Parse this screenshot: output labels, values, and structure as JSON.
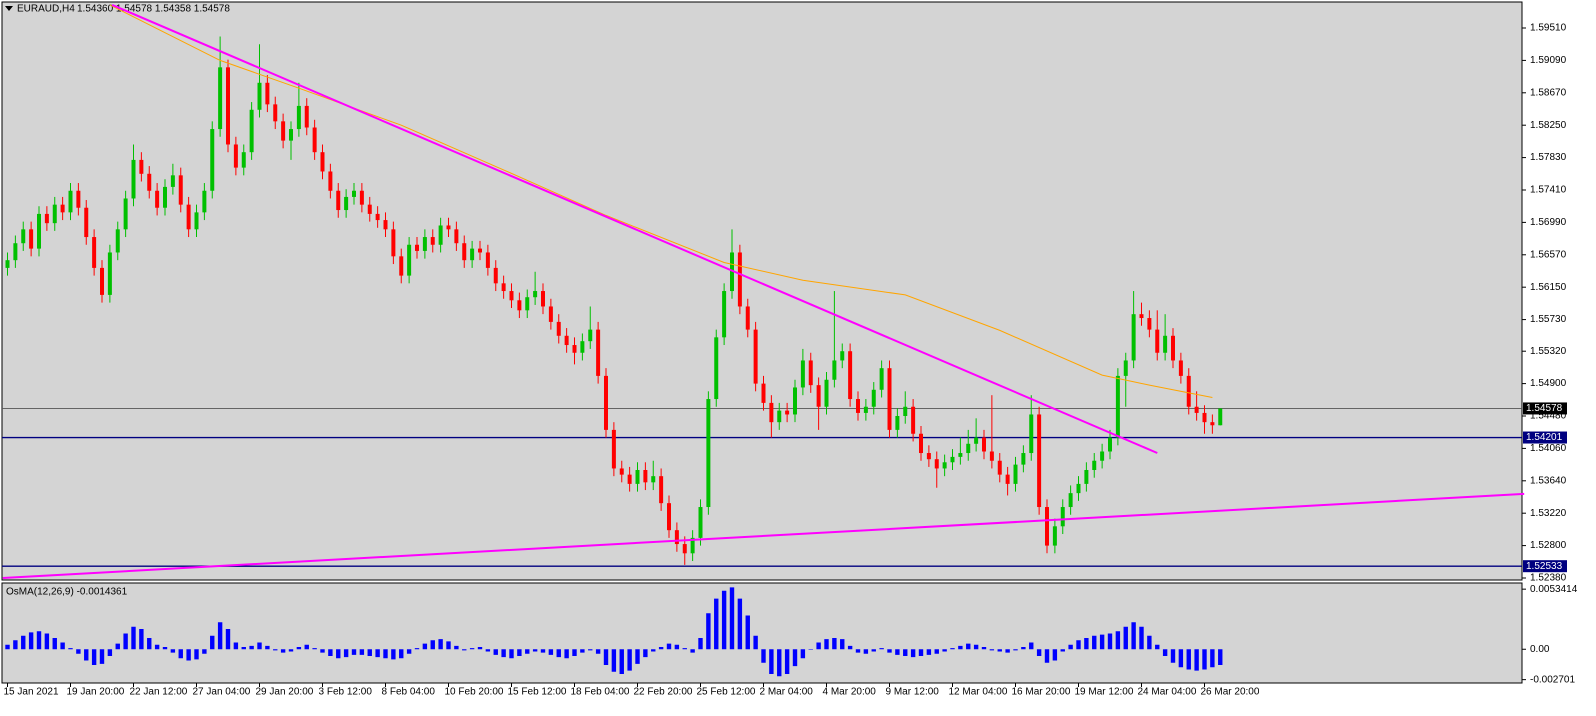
{
  "chart_data": {
    "type": "candlestick",
    "title": "EURAUD,H4",
    "ohlc_label": "1.54360 1.54578 1.54358 1.54578",
    "categories": [
      "15 Jan 2021",
      null,
      null,
      null,
      null,
      null,
      null,
      null,
      "19 Jan 20:00",
      null,
      null,
      null,
      null,
      null,
      null,
      null,
      "22 Jan 12:00",
      null,
      null,
      null,
      null,
      null,
      null,
      null,
      "27 Jan 04:00",
      null,
      null,
      null,
      null,
      null,
      null,
      null,
      "29 Jan 20:00",
      null,
      null,
      null,
      null,
      null,
      null,
      null,
      "3 Feb 12:00",
      null,
      null,
      null,
      null,
      null,
      null,
      null,
      "8 Feb 04:00",
      null,
      null,
      null,
      null,
      null,
      null,
      null,
      "10 Feb 20:00",
      null,
      null,
      null,
      null,
      null,
      null,
      null,
      "15 Feb 12:00",
      null,
      null,
      null,
      null,
      null,
      null,
      null,
      "18 Feb 04:00",
      null,
      null,
      null,
      null,
      null,
      null,
      null,
      "22 Feb 20:00",
      null,
      null,
      null,
      null,
      null,
      null,
      null,
      "25 Feb 12:00",
      null,
      null,
      null,
      null,
      null,
      null,
      null,
      "2 Mar 04:00",
      null,
      null,
      null,
      null,
      null,
      null,
      null,
      "4 Mar 20:00",
      null,
      null,
      null,
      null,
      null,
      null,
      null,
      "9 Mar 12:00",
      null,
      null,
      null,
      null,
      null,
      null,
      null,
      "12 Mar 04:00",
      null,
      null,
      null,
      null,
      null,
      null,
      null,
      "16 Mar 20:00",
      null,
      null,
      null,
      null,
      null,
      null,
      null,
      "19 Mar 12:00",
      null,
      null,
      null,
      null,
      null,
      null,
      null,
      "24 Mar 04:00",
      null,
      null,
      null,
      null,
      null,
      null,
      null,
      "26 Mar 20:00",
      null,
      null
    ],
    "candles": {
      "up_color": "#00c000",
      "down_color": "#ff0000",
      "open": [
        1.564,
        1.565,
        1.5672,
        1.569,
        1.5665,
        1.571,
        1.5698,
        1.5722,
        1.5712,
        1.574,
        1.5718,
        1.568,
        1.564,
        1.5605,
        1.566,
        1.569,
        1.573,
        1.578,
        1.5762,
        1.574,
        1.5718,
        1.5745,
        1.576,
        1.5722,
        1.569,
        1.5712,
        1.574,
        1.582,
        1.59,
        1.58,
        1.577,
        1.579,
        1.5845,
        1.588,
        1.5852,
        1.583,
        1.5805,
        1.582,
        1.585,
        1.5822,
        1.579,
        1.5765,
        1.574,
        1.5715,
        1.5732,
        1.574,
        1.5722,
        1.571,
        1.5702,
        1.569,
        1.5655,
        1.563,
        1.567,
        1.5662,
        1.568,
        1.567,
        1.5695,
        1.569,
        1.5672,
        1.565,
        1.5665,
        1.566,
        1.564,
        1.562,
        1.561,
        1.5598,
        1.5585,
        1.5602,
        1.561,
        1.559,
        1.557,
        1.5552,
        1.554,
        1.553,
        1.5545,
        1.556,
        1.55,
        1.543,
        1.538,
        1.5372,
        1.536,
        1.5378,
        1.5362,
        1.537,
        1.5335,
        1.53,
        1.5282,
        1.527,
        1.529,
        1.533,
        1.547,
        1.555,
        1.561,
        1.566,
        1.559,
        1.556,
        1.549,
        1.5465,
        1.544,
        1.5455,
        1.545,
        1.5485,
        1.552,
        1.5488,
        1.546,
        1.5495,
        1.552,
        1.5532,
        1.547,
        1.5452,
        1.546,
        1.5482,
        1.551,
        1.543,
        1.5448,
        1.546,
        1.5425,
        1.54,
        1.5392,
        1.538,
        1.5388,
        1.5395,
        1.54,
        1.5412,
        1.542,
        1.5402,
        1.539,
        1.5372,
        1.536,
        1.5385,
        1.54,
        1.545,
        1.533,
        1.528,
        1.5305,
        1.533,
        1.5348,
        1.536,
        1.5378,
        1.539,
        1.5402,
        1.542,
        1.55,
        1.552,
        1.558,
        1.5575,
        1.556,
        1.553,
        1.5552,
        1.552,
        1.55,
        1.546,
        1.5452,
        1.544,
        1.5436
      ],
      "high": [
        1.566,
        1.5682,
        1.57,
        1.57,
        1.572,
        1.572,
        1.5732,
        1.5732,
        1.575,
        1.575,
        1.5728,
        1.569,
        1.565,
        1.567,
        1.57,
        1.574,
        1.58,
        1.579,
        1.5772,
        1.575,
        1.5755,
        1.5775,
        1.577,
        1.5732,
        1.5722,
        1.575,
        1.583,
        1.594,
        1.591,
        1.581,
        1.58,
        1.5855,
        1.593,
        1.589,
        1.5862,
        1.584,
        1.583,
        1.588,
        1.586,
        1.5832,
        1.58,
        1.5775,
        1.575,
        1.5742,
        1.575,
        1.575,
        1.5732,
        1.572,
        1.5712,
        1.57,
        1.5665,
        1.568,
        1.568,
        1.569,
        1.569,
        1.5705,
        1.5705,
        1.57,
        1.5682,
        1.5675,
        1.5675,
        1.567,
        1.565,
        1.563,
        1.562,
        1.5608,
        1.5612,
        1.5635,
        1.562,
        1.56,
        1.558,
        1.5562,
        1.555,
        1.5555,
        1.559,
        1.557,
        1.551,
        1.544,
        1.539,
        1.5382,
        1.5388,
        1.5388,
        1.539,
        1.538,
        1.5345,
        1.531,
        1.5292,
        1.53,
        1.534,
        1.548,
        1.556,
        1.562,
        1.569,
        1.567,
        1.56,
        1.557,
        1.55,
        1.5475,
        1.5465,
        1.5465,
        1.5495,
        1.5535,
        1.553,
        1.5498,
        1.5505,
        1.561,
        1.5542,
        1.5542,
        1.548,
        1.547,
        1.5492,
        1.552,
        1.552,
        1.5458,
        1.548,
        1.547,
        1.5435,
        1.541,
        1.5402,
        1.5398,
        1.5405,
        1.542,
        1.543,
        1.5445,
        1.543,
        1.5475,
        1.54,
        1.5382,
        1.5395,
        1.541,
        1.5475,
        1.546,
        1.534,
        1.5315,
        1.534,
        1.5358,
        1.537,
        1.5388,
        1.54,
        1.5412,
        1.543,
        1.551,
        1.553,
        1.561,
        1.5595,
        1.5585,
        1.5585,
        1.558,
        1.5562,
        1.553,
        1.551,
        1.548,
        1.5462,
        1.545,
        1.54578
      ],
      "low": [
        1.563,
        1.564,
        1.5662,
        1.5655,
        1.5655,
        1.5688,
        1.5688,
        1.5702,
        1.5702,
        1.5708,
        1.567,
        1.563,
        1.5595,
        1.5595,
        1.565,
        1.568,
        1.572,
        1.5752,
        1.573,
        1.5708,
        1.5708,
        1.5735,
        1.5712,
        1.568,
        1.568,
        1.5702,
        1.573,
        1.581,
        1.579,
        1.576,
        1.576,
        1.578,
        1.5835,
        1.5842,
        1.582,
        1.5795,
        1.578,
        1.581,
        1.5812,
        1.578,
        1.5755,
        1.573,
        1.5705,
        1.5705,
        1.5722,
        1.5712,
        1.57,
        1.5692,
        1.568,
        1.5645,
        1.562,
        1.562,
        1.5652,
        1.5652,
        1.566,
        1.566,
        1.568,
        1.5662,
        1.564,
        1.564,
        1.565,
        1.563,
        1.561,
        1.56,
        1.5588,
        1.5575,
        1.5575,
        1.5592,
        1.558,
        1.556,
        1.5542,
        1.553,
        1.5515,
        1.552,
        1.5535,
        1.549,
        1.542,
        1.537,
        1.5362,
        1.535,
        1.535,
        1.5352,
        1.5352,
        1.5325,
        1.529,
        1.5272,
        1.5255,
        1.526,
        1.528,
        1.532,
        1.546,
        1.554,
        1.56,
        1.558,
        1.555,
        1.548,
        1.5455,
        1.542,
        1.543,
        1.544,
        1.544,
        1.5475,
        1.5478,
        1.543,
        1.545,
        1.5485,
        1.551,
        1.546,
        1.5442,
        1.5442,
        1.545,
        1.5472,
        1.542,
        1.542,
        1.5438,
        1.5415,
        1.539,
        1.5382,
        1.5355,
        1.537,
        1.5378,
        1.5385,
        1.539,
        1.5402,
        1.5392,
        1.538,
        1.5362,
        1.5345,
        1.535,
        1.5375,
        1.539,
        1.532,
        1.527,
        1.527,
        1.5295,
        1.532,
        1.5338,
        1.535,
        1.5368,
        1.538,
        1.5392,
        1.541,
        1.546,
        1.551,
        1.5565,
        1.555,
        1.552,
        1.552,
        1.551,
        1.549,
        1.545,
        1.5442,
        1.5425,
        1.5425,
        1.54358
      ],
      "close": [
        1.565,
        1.5672,
        1.569,
        1.5665,
        1.571,
        1.5698,
        1.5722,
        1.5712,
        1.574,
        1.5718,
        1.568,
        1.564,
        1.5605,
        1.566,
        1.569,
        1.573,
        1.578,
        1.5762,
        1.574,
        1.5718,
        1.5745,
        1.576,
        1.5722,
        1.569,
        1.5712,
        1.574,
        1.582,
        1.59,
        1.58,
        1.577,
        1.579,
        1.5845,
        1.588,
        1.5852,
        1.583,
        1.5805,
        1.582,
        1.585,
        1.5822,
        1.579,
        1.5765,
        1.574,
        1.5715,
        1.5732,
        1.574,
        1.5722,
        1.571,
        1.5702,
        1.569,
        1.5655,
        1.563,
        1.567,
        1.5662,
        1.568,
        1.567,
        1.5695,
        1.569,
        1.5672,
        1.565,
        1.5665,
        1.566,
        1.564,
        1.562,
        1.561,
        1.5598,
        1.5585,
        1.5602,
        1.561,
        1.559,
        1.557,
        1.5552,
        1.554,
        1.553,
        1.5545,
        1.556,
        1.55,
        1.543,
        1.538,
        1.5372,
        1.536,
        1.5378,
        1.5362,
        1.537,
        1.5335,
        1.53,
        1.5282,
        1.527,
        1.529,
        1.533,
        1.547,
        1.555,
        1.561,
        1.566,
        1.559,
        1.556,
        1.549,
        1.5465,
        1.544,
        1.5455,
        1.545,
        1.5485,
        1.552,
        1.5488,
        1.546,
        1.5495,
        1.552,
        1.5532,
        1.547,
        1.5452,
        1.546,
        1.5482,
        1.551,
        1.543,
        1.5448,
        1.546,
        1.5425,
        1.54,
        1.5392,
        1.538,
        1.5388,
        1.5395,
        1.54,
        1.5412,
        1.542,
        1.5402,
        1.539,
        1.5372,
        1.536,
        1.5385,
        1.54,
        1.545,
        1.533,
        1.528,
        1.5305,
        1.533,
        1.5348,
        1.536,
        1.5378,
        1.539,
        1.5402,
        1.542,
        1.55,
        1.552,
        1.558,
        1.5575,
        1.556,
        1.553,
        1.5552,
        1.552,
        1.55,
        1.546,
        1.5452,
        1.544,
        1.5436,
        1.54578
      ]
    },
    "ma": {
      "color": "#ffa500",
      "x": [
        13,
        27,
        37,
        50,
        63,
        76,
        91,
        101,
        114,
        126,
        139,
        145,
        153
      ],
      "values": [
        1.5981,
        1.5909,
        1.5873,
        1.5825,
        1.5767,
        1.5708,
        1.5647,
        1.5624,
        1.5605,
        1.5559,
        1.5501,
        1.5488,
        1.5472
      ]
    },
    "trendlines": [
      {
        "color": "#ff00ff",
        "x": [
          13.3,
          146
        ],
        "values": [
          1.5981,
          1.54
        ]
      },
      {
        "color": "#ff00ff",
        "x": [
          -0.6,
          192.6
        ],
        "values": [
          1.5238,
          1.5347
        ]
      }
    ],
    "current": {
      "value": 1.54578,
      "label": "1.54578",
      "color": "#000000"
    },
    "levels": [
      {
        "value": 1.54201,
        "label": "1.54201",
        "color": "#000080"
      },
      {
        "value": 1.52533,
        "label": "1.52533",
        "color": "#000080"
      }
    ],
    "ylim": [
      1.52354,
      1.59873
    ],
    "yticks": [
      {
        "value": 1.5951,
        "label": "1.59510"
      },
      {
        "value": 1.5909,
        "label": "1.59090"
      },
      {
        "value": 1.5867,
        "label": "1.58670"
      },
      {
        "value": 1.5825,
        "label": "1.58250"
      },
      {
        "value": 1.5783,
        "label": "1.57830"
      },
      {
        "value": 1.5741,
        "label": "1.57410"
      },
      {
        "value": 1.5699,
        "label": "1.56990"
      },
      {
        "value": 1.5657,
        "label": "1.56570"
      },
      {
        "value": 1.5615,
        "label": "1.56150"
      },
      {
        "value": 1.5573,
        "label": "1.55730"
      },
      {
        "value": 1.5532,
        "label": "1.55320"
      },
      {
        "value": 1.549,
        "label": "1.54900"
      },
      {
        "value": 1.5448,
        "label": "1.54480"
      },
      {
        "value": 1.5406,
        "label": "1.54060"
      },
      {
        "value": 1.5364,
        "label": "1.53640"
      },
      {
        "value": 1.5322,
        "label": "1.53220"
      },
      {
        "value": 1.528,
        "label": "1.52800"
      },
      {
        "value": 1.5238,
        "label": "1.52380"
      }
    ],
    "osma": {
      "name": "OsMA(12,26,9) -0.0014361",
      "color": "#0000ff",
      "values": [
        0.0004,
        0.0008,
        0.0012,
        0.0015,
        0.0016,
        0.0014,
        0.001,
        0.0006,
        0.0001,
        -0.0004,
        -0.001,
        -0.0014,
        -0.0013,
        -0.0006,
        0.0005,
        0.0014,
        0.002,
        0.0018,
        0.001,
        0.0004,
        0.0002,
        -0.0003,
        -0.0008,
        -0.001,
        -0.0009,
        -0.0004,
        0.0012,
        0.0024,
        0.0018,
        0.0006,
        0.0002,
        0.0003,
        0.0006,
        0.0003,
        -0.0001,
        -0.0003,
        -0.0002,
        0.0002,
        0.0004,
        0.0001,
        -0.0003,
        -0.0006,
        -0.0008,
        -0.0007,
        -0.0005,
        -0.0005,
        -0.0006,
        -0.0007,
        -0.0008,
        -0.0009,
        -0.0008,
        -0.0004,
        0.0001,
        0.0005,
        0.0008,
        0.0009,
        0.0007,
        0.0003,
        -0.0001,
        0.0001,
        0.0002,
        -0.0002,
        -0.0005,
        -0.0007,
        -0.0008,
        -0.0006,
        -0.0004,
        -0.0002,
        -0.0003,
        -0.0005,
        -0.0007,
        -0.0008,
        -0.0006,
        -0.0003,
        -0.0001,
        -0.0004,
        -0.0014,
        -0.002,
        -0.0022,
        -0.0019,
        -0.0013,
        -0.0007,
        -0.0002,
        0.0002,
        0.0005,
        0.0004,
        0.0001,
        -0.0003,
        0.001,
        0.0032,
        0.0045,
        0.0052,
        0.0055,
        0.0045,
        0.003,
        0.0012,
        -0.0012,
        -0.0022,
        -0.0024,
        -0.0022,
        -0.0015,
        -0.0008,
        0.0,
        0.0006,
        0.0009,
        0.001,
        0.0009,
        0.0003,
        -0.0003,
        -0.0004,
        -0.0002,
        0.0001,
        -0.0003,
        -0.0005,
        -0.0006,
        -0.0007,
        -0.0006,
        -0.0005,
        -0.0004,
        -0.0002,
        0.0001,
        0.0003,
        0.0005,
        0.0004,
        0.0002,
        -0.0001,
        -0.0002,
        -0.0003,
        -0.0001,
        0.0002,
        0.0006,
        -0.0006,
        -0.0012,
        -0.001,
        -0.0002,
        0.0004,
        0.0008,
        0.001,
        0.0012,
        0.0013,
        0.0014,
        0.0016,
        0.002,
        0.0024,
        0.002,
        0.0012,
        0.0004,
        -0.0006,
        -0.0012,
        -0.0016,
        -0.0018,
        -0.0019,
        -0.0018,
        -0.0016,
        -0.0014
      ],
      "ylim": [
        -0.003,
        0.0058
      ],
      "yticks": [
        0.0053414,
        {
          "value": 0,
          "label": "0.00"
        },
        -0.002701
      ]
    }
  }
}
